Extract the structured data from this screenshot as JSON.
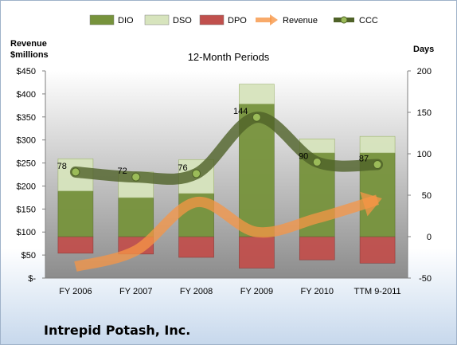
{
  "chart_data": {
    "type": "bar",
    "title": "12-Month Periods",
    "categories": [
      "FY 2006",
      "FY 2007",
      "FY 2008",
      "FY 2009",
      "FY 2010",
      "TTM 9-2011"
    ],
    "left_axis": {
      "title_line1": "Revenue",
      "title_line2": "$millions",
      "ticks": [
        "$-",
        "$50",
        "$100",
        "$150",
        "$200",
        "$250",
        "$300",
        "$350",
        "$400",
        "$450"
      ],
      "ylim": [
        0,
        450
      ]
    },
    "right_axis": {
      "title": "Days",
      "ticks": [
        "-50",
        "0",
        "50",
        "100",
        "150",
        "200"
      ],
      "ylim": [
        -50,
        200
      ]
    },
    "legend": {
      "position": "top",
      "entries": [
        {
          "label": "DIO",
          "color": "#77933c"
        },
        {
          "label": "DSO",
          "color": "#d7e4bd"
        },
        {
          "label": "DPO",
          "color": "#c0504d"
        },
        {
          "label": "Revenue",
          "color": "#f79646"
        },
        {
          "label": "CCC",
          "color": "#4f6228"
        }
      ]
    },
    "series": [
      {
        "name": "DIO",
        "axis": "right",
        "values": [
          55,
          47,
          52,
          160,
          101,
          101
        ]
      },
      {
        "name": "DSO",
        "axis": "right",
        "values": [
          39,
          31,
          41,
          24,
          17,
          20
        ]
      },
      {
        "name": "DPO",
        "axis": "right",
        "values": [
          -20,
          -21,
          -25,
          -38,
          -28,
          -32
        ]
      },
      {
        "name": "Revenue",
        "axis": "left",
        "values": [
          25,
          60,
          165,
          100,
          130,
          170
        ]
      },
      {
        "name": "CCC",
        "axis": "right",
        "values": [
          78,
          72,
          76,
          144,
          90,
          87
        ]
      }
    ],
    "data_labels": [
      "78",
      "72",
      "76",
      "144",
      "90",
      "87"
    ],
    "grid": false,
    "colors": {
      "plot_bg_top": "#ffffff",
      "plot_bg_bottom": "#8c8c8c"
    }
  },
  "company": "Intrepid Potash, Inc."
}
